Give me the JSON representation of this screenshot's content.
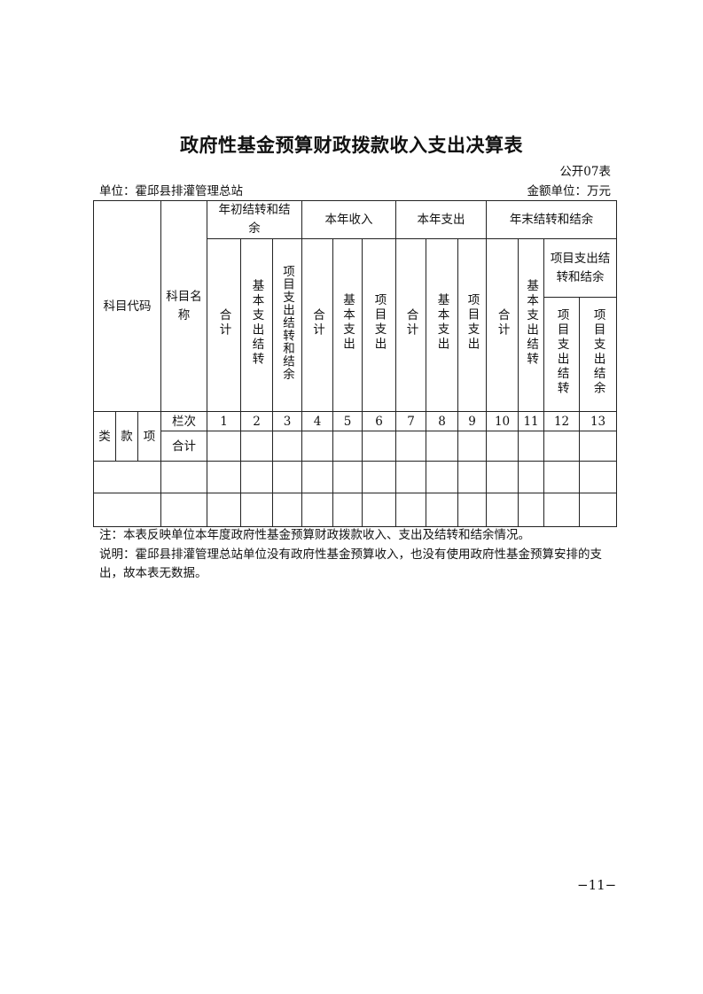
{
  "title": "政府性基金预算财政拨款收入支出决算表",
  "form_code": "公开07表",
  "unit": "单位：霍邱县排灌管理总站",
  "amount_unit": "金额单位：万元",
  "table": {
    "subject_code": "科目代码",
    "subject_name": "科目名称",
    "groups": [
      "年初结转和结余",
      "本年收入",
      "本年支出",
      "年末结转和结余"
    ],
    "g1": [
      "合计",
      "基本支出结转",
      "项目支出结转和结余"
    ],
    "g2": [
      "合计",
      "基本支出",
      "项目支出"
    ],
    "g3": [
      "合计",
      "基本支出",
      "项目支出"
    ],
    "g4": [
      "合计",
      "基本支出结转",
      "项目支出结转和结余"
    ],
    "g4_sub": [
      "项目支出结转",
      "项目支出结余"
    ],
    "code_parts": [
      "类",
      "款",
      "项"
    ],
    "row_index_label": "栏次",
    "columns": [
      "1",
      "2",
      "3",
      "4",
      "5",
      "6",
      "7",
      "8",
      "9",
      "10",
      "11",
      "12",
      "13"
    ],
    "total_label": "合计"
  },
  "notes": {
    "note": "注：本表反映单位本年度政府性基金预算财政拨款收入、支出及结转和结余情况。",
    "explanation": "说明：霍邱县排灌管理总站单位没有政府性基金预算收入，也没有使用政府性基金预算安排的支出，故本表无数据。"
  },
  "page_number": "−11−"
}
